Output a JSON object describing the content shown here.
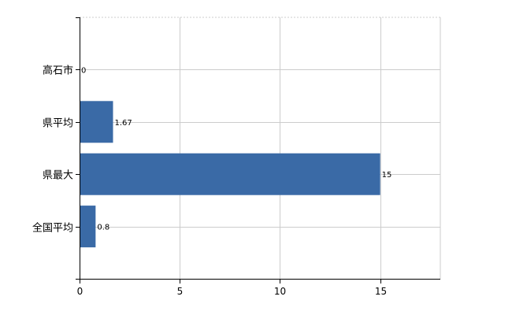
{
  "chart_data": {
    "type": "bar",
    "orientation": "horizontal",
    "categories": [
      "高石市",
      "県平均",
      "県最大",
      "全国平均"
    ],
    "values": [
      0,
      1.67,
      15,
      0.8
    ],
    "data_labels": [
      "0",
      "1.67",
      "15",
      "0.8"
    ],
    "x_ticks": [
      0,
      5,
      10,
      15
    ],
    "xlim": [
      0,
      18
    ],
    "grid": true,
    "bar_color": "#3a6aa6",
    "title": "",
    "xlabel": "",
    "ylabel": ""
  }
}
